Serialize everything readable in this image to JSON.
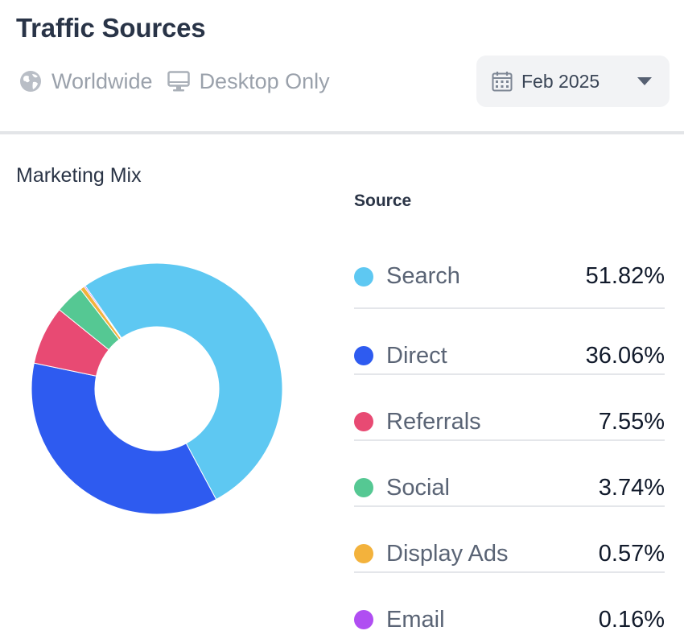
{
  "header": {
    "title": "Traffic Sources",
    "region": "Worldwide",
    "device": "Desktop Only",
    "date": "Feb 2025",
    "icons": {
      "region": "globe-icon",
      "device": "desktop-monitor-icon",
      "date": "calendar-icon",
      "dropdown": "chevron-down-icon"
    }
  },
  "section": {
    "title": "Marketing Mix"
  },
  "legend": {
    "header": "Source"
  },
  "chart_data": {
    "type": "pie",
    "categories": [
      "Search",
      "Direct",
      "Referrals",
      "Social",
      "Display Ads",
      "Email"
    ],
    "values": [
      51.82,
      36.06,
      7.55,
      3.74,
      0.57,
      0.16
    ],
    "labels": [
      "51.82%",
      "36.06%",
      "7.55%",
      "3.74%",
      "0.57%",
      "0.16%"
    ],
    "colors": [
      "#5ec8f2",
      "#2e5bf0",
      "#e84a73",
      "#55c893",
      "#f3b23c",
      "#b04ef2"
    ],
    "donut": true,
    "legend_position": "right"
  }
}
